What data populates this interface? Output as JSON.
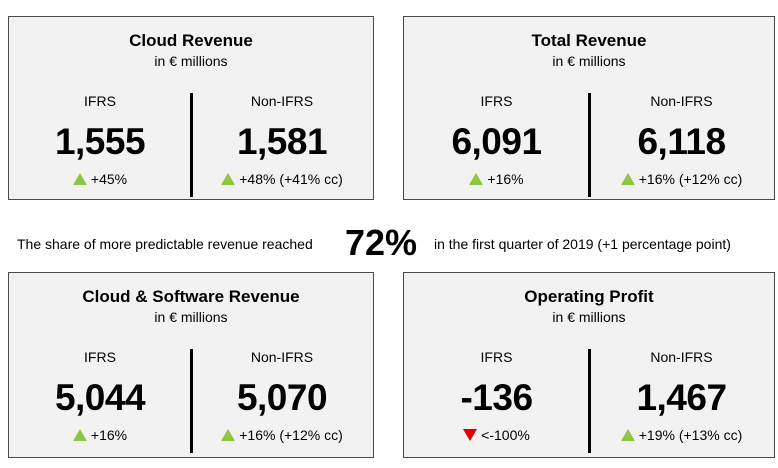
{
  "cards": [
    {
      "title": "Cloud Revenue",
      "subtitle": "in € millions",
      "left": {
        "label": "IFRS",
        "value": "1,555",
        "change": "+45%",
        "direction": "up"
      },
      "right": {
        "label": "Non-IFRS",
        "value": "1,581",
        "change": "+48% (+41% cc)",
        "direction": "up"
      }
    },
    {
      "title": "Total Revenue",
      "subtitle": "in € millions",
      "left": {
        "label": "IFRS",
        "value": "6,091",
        "change": "+16%",
        "direction": "up"
      },
      "right": {
        "label": "Non-IFRS",
        "value": "6,118",
        "change": "+16% (+12% cc)",
        "direction": "up"
      }
    },
    {
      "title": "Cloud & Software Revenue",
      "subtitle": "in € millions",
      "left": {
        "label": "IFRS",
        "value": "5,044",
        "change": "+16%",
        "direction": "up"
      },
      "right": {
        "label": "Non-IFRS",
        "value": "5,070",
        "change": "+16% (+12% cc)",
        "direction": "up"
      }
    },
    {
      "title": "Operating Profit",
      "subtitle": "in € millions",
      "left": {
        "label": "IFRS",
        "value": "-136",
        "change": "<-100%",
        "direction": "down"
      },
      "right": {
        "label": "Non-IFRS",
        "value": "1,467",
        "change": "+19% (+13% cc)",
        "direction": "up"
      }
    }
  ],
  "share": {
    "prefix": "The share of more predictable revenue reached",
    "percent": "72%",
    "suffix": "in the first quarter of 2019 (+1 percentage point)"
  },
  "colors": {
    "up": "#8dc63f",
    "down": "#e00000",
    "card_background": "#f2f2f2",
    "card_border": "#4a4a4a"
  }
}
